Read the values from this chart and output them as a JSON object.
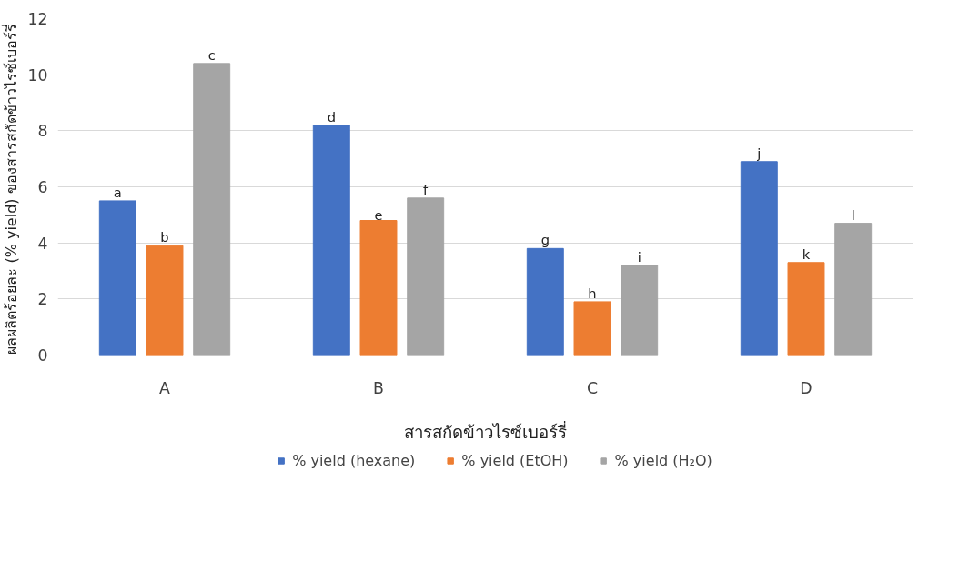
{
  "chart_data": {
    "type": "bar",
    "xlabel": "สารสกัดข้าวไรซ์เบอร์รี่",
    "ylabel": "ผลผลิตร้อยละ (% yield)  ของสารสกัดข้าวไรซ์เบอร์รี่",
    "categories": [
      "A",
      "B",
      "C",
      "D"
    ],
    "series": [
      {
        "name": "% yield (hexane)",
        "color": "#4472c4",
        "values": [
          5.5,
          8.2,
          3.8,
          6.9
        ]
      },
      {
        "name": "% yield (EtOH)",
        "color": "#ed7d31",
        "values": [
          3.9,
          4.8,
          1.9,
          3.3
        ]
      },
      {
        "name": "% yield (H₂O)",
        "color": "#a5a5a5",
        "values": [
          10.4,
          5.6,
          3.2,
          4.7
        ]
      }
    ],
    "ylim": [
      0,
      12
    ],
    "yticks": [
      0,
      2,
      4,
      6,
      8,
      10,
      12
    ],
    "grid": "y",
    "legend": "bottom",
    "annotations": [
      "a",
      "b",
      "c",
      "d",
      "e",
      "f",
      "g",
      "h",
      "i",
      "j",
      "k",
      "l"
    ]
  }
}
